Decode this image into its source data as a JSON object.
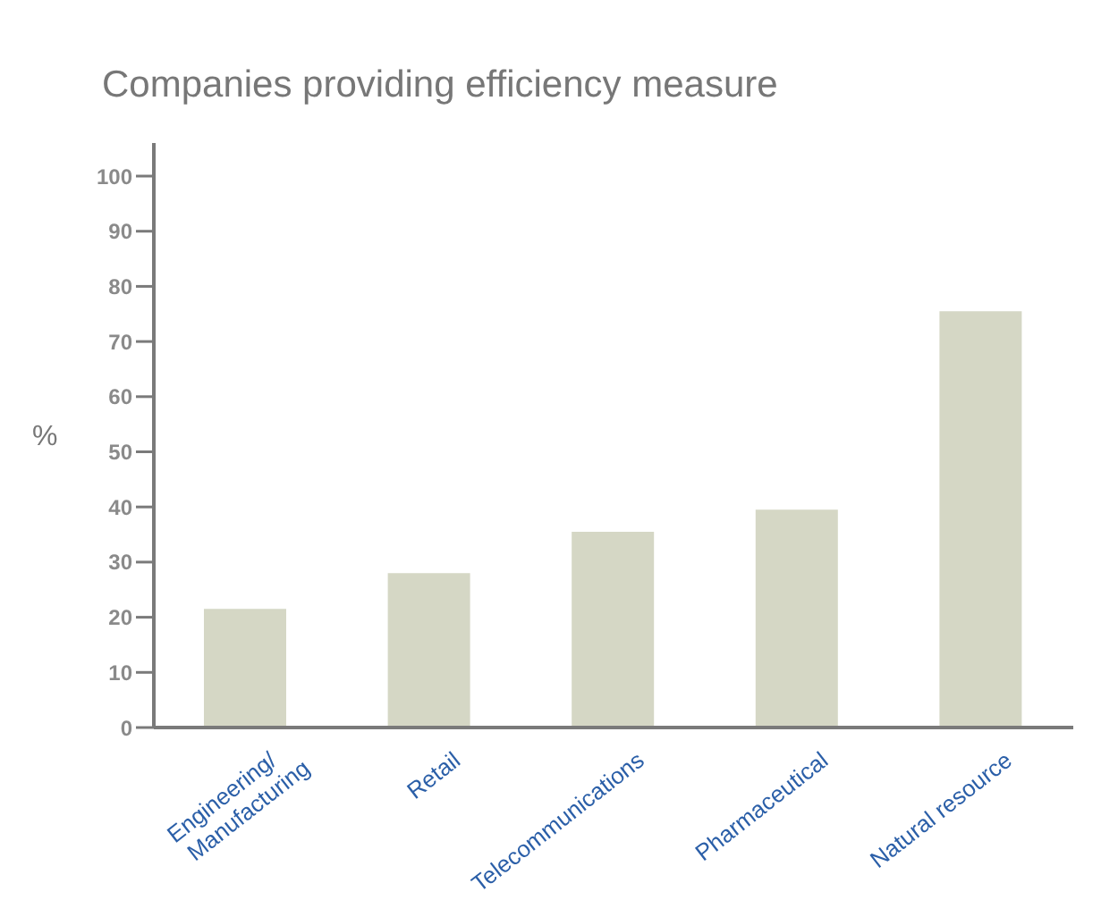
{
  "chart_data": {
    "type": "bar",
    "title": "Companies providing efficiency measure",
    "ylabel": "%",
    "categories": [
      "Engineering/\nManufacturing",
      "Retail",
      "Telecommunications",
      "Pharmaceutical",
      "Natural resource"
    ],
    "values": [
      21.5,
      28,
      35.5,
      39.5,
      75.5
    ],
    "color": "#d5d7c5",
    "ylim": [
      0,
      106
    ],
    "yticks": [
      0,
      10,
      20,
      30,
      40,
      50,
      60,
      70,
      80,
      90,
      100
    ],
    "grid": false
  }
}
